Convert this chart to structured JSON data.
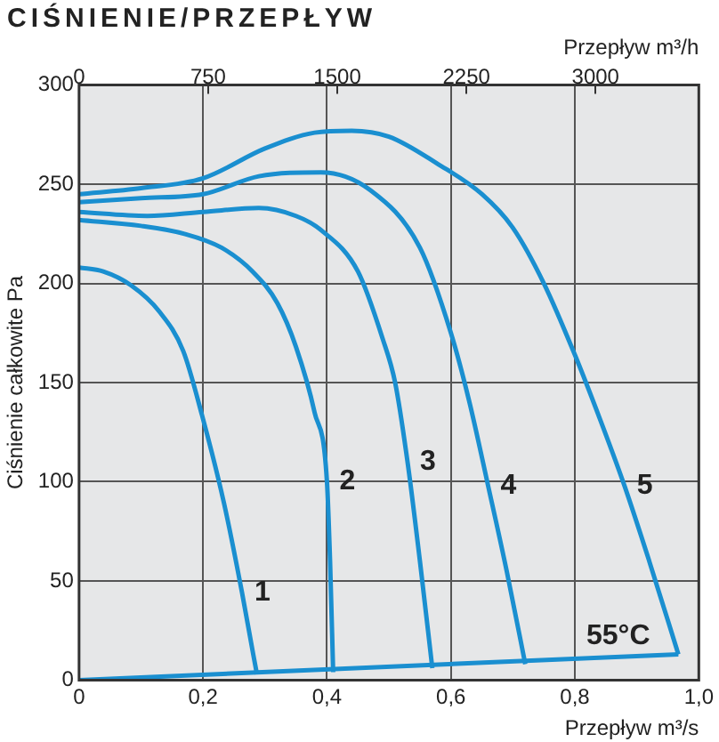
{
  "chart_data": {
    "type": "line",
    "title": "CIŚNIENIE/PRZEPŁYW",
    "xlabel": "Przepływ m³/s",
    "x2label": "Przepływ m³/h",
    "ylabel": "Ciśnienie całkowite Pa",
    "xlim": [
      0,
      1
    ],
    "xticks": [
      0,
      {
        "value": 0.2,
        "label": "0,2"
      },
      {
        "value": 0.4,
        "label": "0,4"
      },
      {
        "value": 0.6,
        "label": "0,6"
      },
      {
        "value": 0.8,
        "label": "0,8"
      },
      {
        "value": 1,
        "label": "1,0"
      }
    ],
    "x2lim": [
      0,
      3600
    ],
    "x2ticks": [
      0,
      750,
      1500,
      2250,
      3000
    ],
    "ylim": [
      0,
      300
    ],
    "yticks": [
      0,
      50,
      100,
      150,
      200,
      250,
      300
    ],
    "grid": true,
    "legend": false,
    "marker": "none",
    "line_style": "solid",
    "series": [
      {
        "name": "1",
        "color": "#1a8fd0",
        "x": [
          0,
          0.039,
          0.084,
          0.129,
          0.168,
          0.198,
          0.234,
          0.263,
          0.281,
          0.287
        ],
        "values": [
          208,
          206,
          199,
          186,
          166,
          134,
          89,
          44,
          13,
          3
        ]
      },
      {
        "name": "2",
        "color": "#1a8fd0",
        "x": [
          0,
          0.1,
          0.17,
          0.23,
          0.28,
          0.32,
          0.35,
          0.38,
          0.4,
          0.405,
          0.41
        ],
        "values": [
          232,
          229,
          225,
          218,
          206,
          190,
          168,
          135,
          100,
          60,
          4
        ]
      },
      {
        "name": "3",
        "color": "#1a8fd0",
        "x": [
          0,
          0.11,
          0.2,
          0.29,
          0.35,
          0.39,
          0.45,
          0.49,
          0.51,
          0.53,
          0.55,
          0.57
        ],
        "values": [
          236,
          234,
          236,
          238,
          234,
          227,
          206,
          172,
          150,
          110,
          60,
          6
        ]
      },
      {
        "name": "4",
        "color": "#1a8fd0",
        "x": [
          0,
          0.1,
          0.2,
          0.29,
          0.39,
          0.47,
          0.55,
          0.6,
          0.63,
          0.66,
          0.69,
          0.72
        ],
        "values": [
          241,
          243,
          245,
          254,
          256,
          247,
          218,
          175,
          140,
          98,
          55,
          8
        ]
      },
      {
        "name": "5",
        "color": "#1a8fd0",
        "x": [
          0,
          0.1,
          0.2,
          0.3,
          0.38,
          0.44,
          0.5,
          0.58,
          0.65,
          0.7,
          0.75,
          0.8,
          0.84,
          0.88,
          0.92,
          0.967
        ],
        "values": [
          245,
          248,
          253,
          268,
          276,
          277,
          274,
          260,
          245,
          228,
          200,
          164,
          132,
          98,
          60,
          13
        ]
      },
      {
        "color": "#1a8fd0",
        "x": [
          0,
          0.967
        ],
        "values": [
          0,
          13
        ]
      }
    ],
    "annotations": [
      {
        "text": "55°C",
        "x": 0.87,
        "y": 12
      }
    ]
  }
}
